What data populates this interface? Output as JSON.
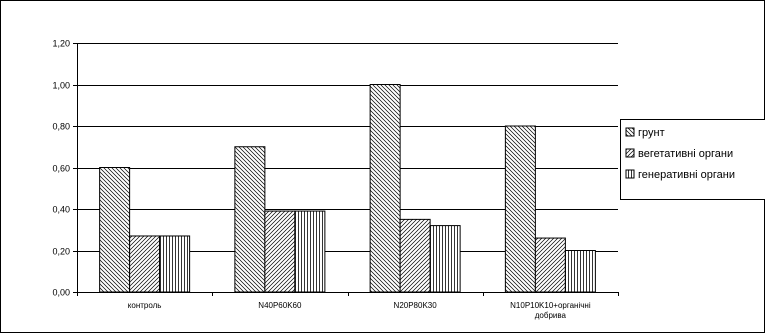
{
  "chart_data": {
    "type": "bar",
    "categories": [
      [
        "контроль"
      ],
      [
        "N40P60K60"
      ],
      [
        "N20P80K30"
      ],
      [
        "N10P10K10+органічні",
        "добрива"
      ]
    ],
    "series": [
      {
        "name": "грунт",
        "values": [
          0.6,
          0.7,
          1.0,
          0.8
        ],
        "pattern": "diag-down"
      },
      {
        "name": "вегетативні органи",
        "values": [
          0.27,
          0.39,
          0.35,
          0.26
        ],
        "pattern": "diag-up"
      },
      {
        "name": "генеративні органи",
        "values": [
          0.27,
          0.39,
          0.32,
          0.2
        ],
        "pattern": "vertical"
      }
    ],
    "ylim": [
      0,
      1.2
    ],
    "yticks": [
      "0,00",
      "0,20",
      "0,40",
      "0,60",
      "0,80",
      "1,00",
      "1,20"
    ],
    "grid": true,
    "legend_position": "right",
    "colors": {
      "bar_fill": "#ffffff",
      "bar_stroke": "#000000",
      "grid": "#000000",
      "frame": "#000000"
    }
  }
}
